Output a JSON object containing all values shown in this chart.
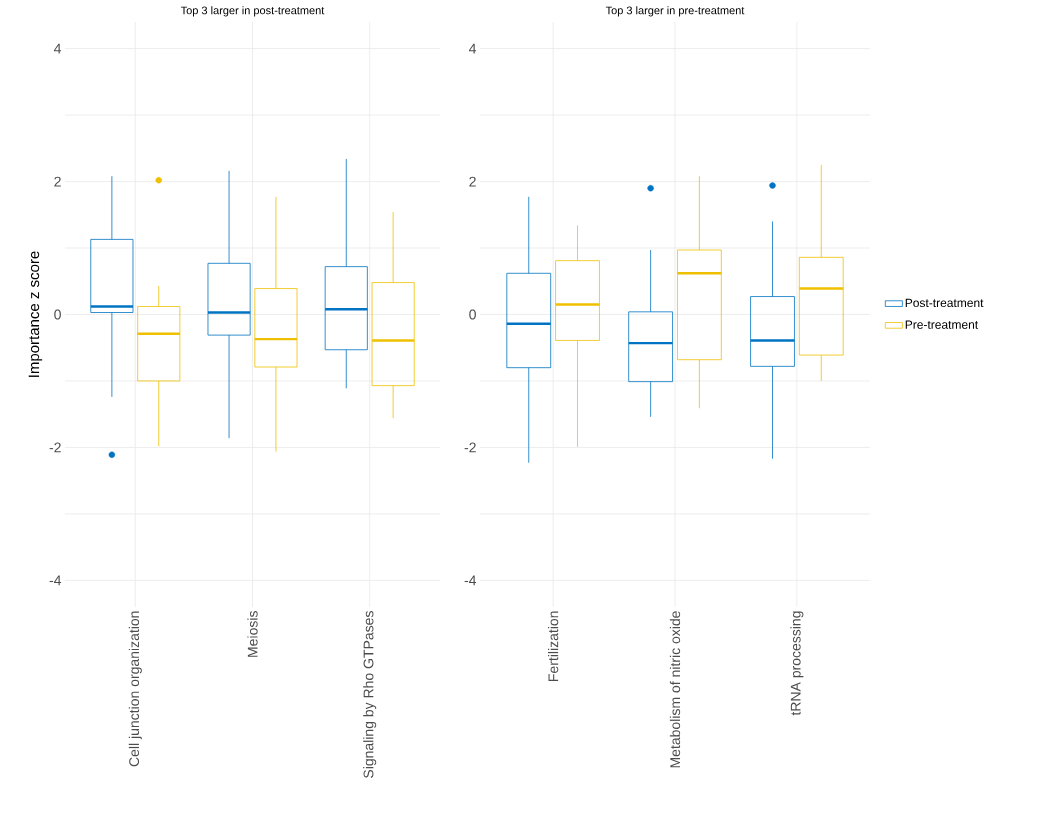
{
  "chart_data": [
    {
      "type": "box",
      "title": "Top 3 larger in post-treatment",
      "ylabel": "Importance z score",
      "categories": [
        "Cell junction organization",
        "Meiosis",
        "Signaling by Rho GTPases"
      ],
      "ylim": [
        -4.4,
        4.4
      ],
      "yticks": [
        -4,
        {
          "value": -3,
          "label": null
        },
        -2,
        {
          "value": -1,
          "label": null
        },
        0,
        {
          "value": 1,
          "label": null
        },
        2,
        {
          "value": 3,
          "label": null
        },
        4
      ],
      "grid": true,
      "series": [
        {
          "color": "#0073c2",
          "boxes": [
            {
              "low": -1.24,
              "q1": 0.03,
              "median": 0.12,
              "q3": 1.13,
              "high": 2.08,
              "outliers": [
                -2.11
              ]
            },
            {
              "low": -1.86,
              "q1": -0.31,
              "median": 0.03,
              "q3": 0.77,
              "high": 2.16
            },
            {
              "low": -1.11,
              "q1": -0.53,
              "median": 0.08,
              "q3": 0.72,
              "high": 2.34
            }
          ]
        },
        {
          "color": "#efc000",
          "boxes": [
            {
              "low": -1.98,
              "q1": -1.0,
              "median": -0.29,
              "q3": 0.12,
              "high": 0.43,
              "outliers": [
                2.02
              ]
            },
            {
              "low": -2.06,
              "q1": -0.79,
              "median": -0.37,
              "q3": 0.39,
              "high": 1.77
            },
            {
              "low": -1.56,
              "q1": -1.07,
              "median": -0.39,
              "q3": 0.48,
              "high": 1.54
            }
          ]
        }
      ]
    },
    {
      "type": "box",
      "title": "Top 3 larger in pre-treatment",
      "categories": [
        "Fertilization",
        "Metabolism of nitric oxide",
        "tRNA processing"
      ],
      "ylim": [
        -4.4,
        4.4
      ],
      "yticks": [
        -4,
        {
          "value": -3,
          "label": null
        },
        -2,
        {
          "value": -1,
          "label": null
        },
        0,
        {
          "value": 1,
          "label": null
        },
        2,
        {
          "value": 3,
          "label": null
        },
        4
      ],
      "grid": true,
      "legend": "right",
      "series": [
        {
          "name": "Post-treatment",
          "color": "#0073c2",
          "boxes": [
            {
              "low": -2.23,
              "q1": -0.8,
              "median": -0.14,
              "q3": 0.62,
              "high": 1.77
            },
            {
              "low": -1.54,
              "q1": -1.01,
              "median": -0.43,
              "q3": 0.04,
              "high": 0.97,
              "outliers": [
                1.9
              ]
            },
            {
              "low": -2.17,
              "q1": -0.78,
              "median": -0.39,
              "q3": 0.27,
              "high": 1.4,
              "outliers": [
                1.94
              ]
            }
          ]
        },
        {
          "name": "Pre-treatment",
          "color": "#efc000",
          "boxes": [
            {
              "low": -1.99,
              "q1": -0.39,
              "median": 0.15,
              "q3": 0.81,
              "high": 1.34
            },
            {
              "low": -1.41,
              "q1": -0.68,
              "median": 0.62,
              "q3": 0.97,
              "high": 2.08
            },
            {
              "low": -1.0,
              "q1": -0.61,
              "median": 0.39,
              "q3": 0.86,
              "high": 2.25
            }
          ]
        }
      ]
    }
  ]
}
